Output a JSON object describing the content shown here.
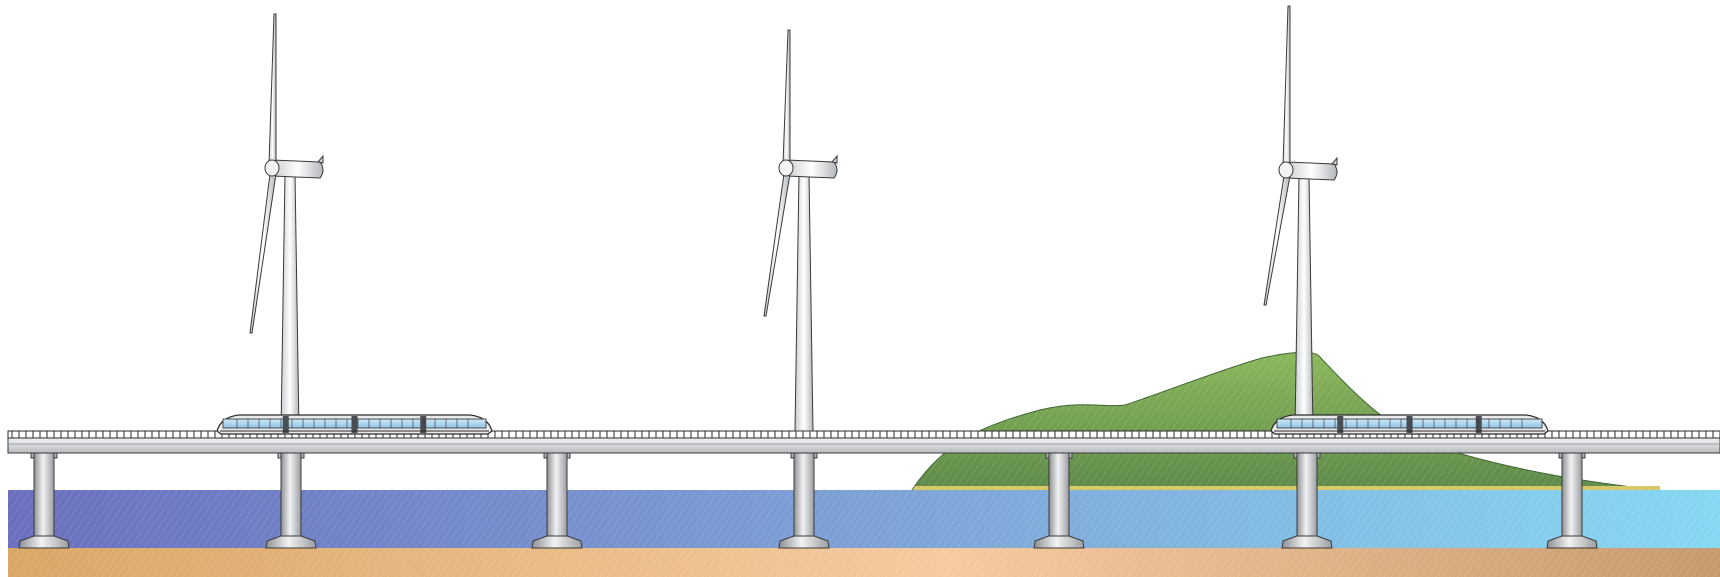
{
  "scene": {
    "subject": "offshore-wind-turbines-and-rail-viaduct",
    "turbine_count": 3,
    "train_count": 2,
    "pier_count": 7,
    "colors": {
      "sky": "#ffffff",
      "water_left": "#6a6fbf",
      "water_right": "#86d8f2",
      "seabed_left": "#d9a766",
      "seabed_mid": "#f6caa0",
      "seabed_right": "#c79a6e",
      "hill": "#6f9e50",
      "hill_shore": "#d7c86a",
      "concrete": "#d6d8da",
      "concrete_dark": "#8d9094",
      "train_glass": "#a9d4ee",
      "outline": "#2b2b2b"
    }
  }
}
